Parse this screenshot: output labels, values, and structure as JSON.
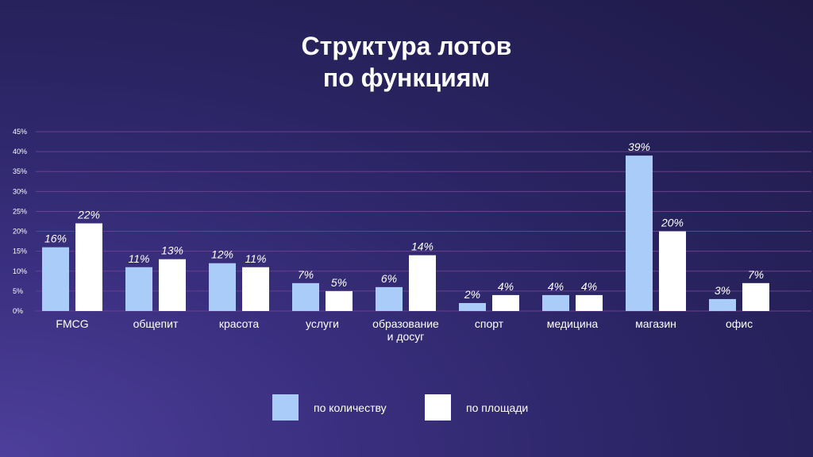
{
  "title_line1": "Структура лотов",
  "title_line2": "по функциям",
  "colors": {
    "series1": "#a9cdf8",
    "series2": "#ffffff",
    "grid": "#6a3f8e",
    "axis_text": "#ffffff"
  },
  "legend": {
    "series1_label": "по количеству",
    "series2_label": "по площади"
  },
  "chart_data": {
    "type": "bar",
    "categories": [
      [
        "FMCG"
      ],
      [
        "общепит"
      ],
      [
        "красота"
      ],
      [
        "услуги"
      ],
      [
        "образование",
        "и досуг"
      ],
      [
        "спорт"
      ],
      [
        "медицина"
      ],
      [
        "магазин"
      ],
      [
        "офис"
      ]
    ],
    "series": [
      {
        "name": "по количеству",
        "values": [
          16,
          11,
          12,
          7,
          6,
          2,
          4,
          39,
          3
        ]
      },
      {
        "name": "по площади",
        "values": [
          22,
          13,
          11,
          5,
          14,
          4,
          4,
          20,
          7
        ]
      }
    ],
    "value_labels": [
      [
        "16%",
        "11%",
        "12%",
        "7%",
        "6%",
        "2%",
        "4%",
        "39%",
        "3%"
      ],
      [
        "22%",
        "13%",
        "11%",
        "5%",
        "14%",
        "4%",
        "4%",
        "20%",
        "7%"
      ]
    ],
    "y_ticks": [
      "0%",
      "5%",
      "10%",
      "15%",
      "20%",
      "25%",
      "30%",
      "35%",
      "40%",
      "45%"
    ],
    "ylim": [
      0,
      45
    ],
    "grid": true,
    "legend_position": "bottom"
  }
}
